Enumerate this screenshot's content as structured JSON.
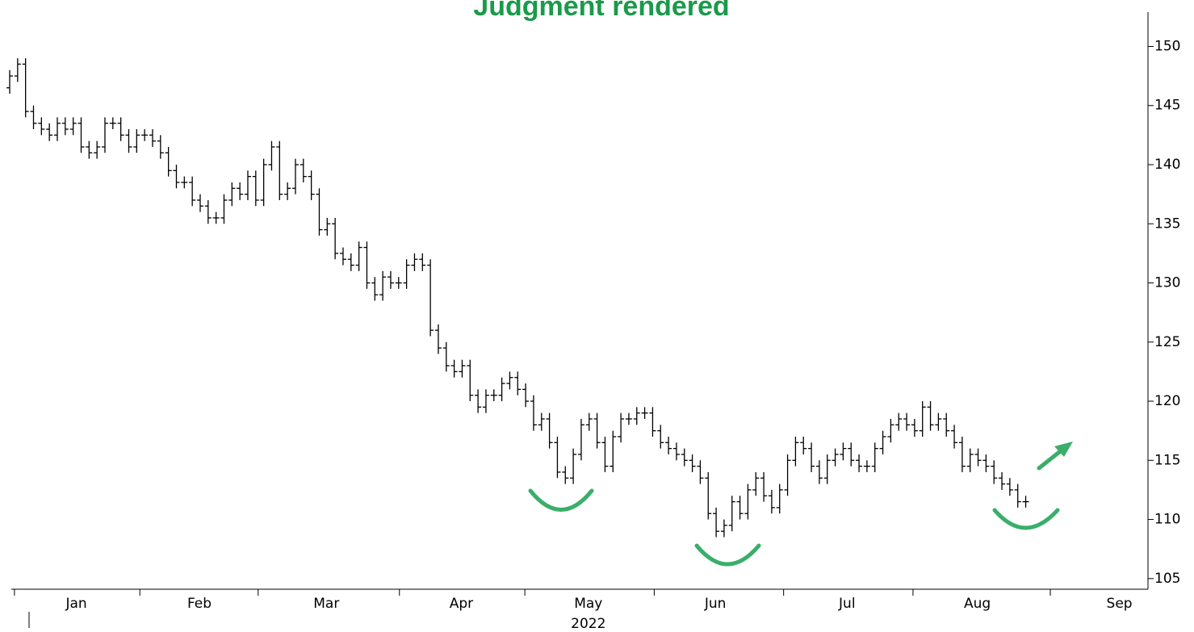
{
  "chart_data": {
    "type": "ohlc",
    "title": "Judgment rendered",
    "x_sublabel": "2022",
    "x": [
      0,
      1,
      2,
      3,
      4,
      5,
      6,
      7,
      8,
      9,
      10,
      11,
      12,
      13,
      14,
      15,
      16,
      17,
      18,
      19,
      20,
      21,
      22,
      23,
      24,
      25,
      26,
      27,
      28,
      29,
      30,
      31,
      32,
      33,
      34,
      35,
      36,
      37,
      38,
      39,
      40,
      41,
      42,
      43,
      44,
      45,
      46,
      47,
      48,
      49,
      50,
      51,
      52,
      53,
      54,
      55,
      56,
      57,
      58,
      59,
      60,
      61,
      62,
      63,
      64,
      65,
      66,
      67,
      68,
      69,
      70,
      71,
      72,
      73,
      74,
      75,
      76,
      77,
      78,
      79,
      80,
      81,
      82,
      83,
      84,
      85,
      86,
      87,
      88,
      89,
      90,
      91,
      92,
      93,
      94,
      95,
      96,
      97,
      98,
      99,
      100,
      101,
      102,
      103,
      104,
      105,
      106,
      107,
      108,
      109,
      110,
      111,
      112,
      113,
      114,
      115,
      116,
      117,
      118,
      119,
      120,
      121,
      122,
      123,
      124,
      125,
      126,
      127,
      128
    ],
    "open": [
      146.5,
      147.5,
      148.5,
      144.5,
      143.5,
      143,
      142.5,
      143.5,
      143,
      143.5,
      141.5,
      141,
      141.5,
      143.5,
      143.5,
      142.5,
      141.5,
      142.5,
      142.5,
      142,
      141,
      139.5,
      138.5,
      138.5,
      137,
      136.5,
      135.5,
      135.5,
      137,
      138,
      137.5,
      139,
      137,
      140,
      141.5,
      137.5,
      138,
      140,
      139,
      137.5,
      134.5,
      135,
      132.5,
      132,
      131.5,
      133,
      130,
      129,
      130.5,
      130,
      130,
      131.5,
      132,
      131.5,
      126,
      124.5,
      123,
      122.5,
      123,
      120.5,
      119.5,
      120.5,
      120.5,
      121.5,
      122,
      121,
      120,
      118,
      118.5,
      116.5,
      114,
      113.5,
      115.5,
      118,
      118.5,
      116.5,
      114.5,
      117,
      118.5,
      118.5,
      119,
      119,
      117.5,
      116.5,
      116,
      115.5,
      115,
      114.5,
      113.5,
      110.5,
      109,
      109.5,
      111.5,
      110.5,
      112.5,
      113.5,
      112,
      111,
      112.5,
      115,
      116.5,
      116,
      114.5,
      113.5,
      115,
      115.5,
      116,
      115,
      114.5,
      114.5,
      116,
      117,
      118,
      118.5,
      118,
      117.5,
      119.5,
      118,
      118.5,
      117.5,
      116.5,
      114.5,
      115.5,
      115,
      114.5,
      113.5,
      113,
      112.5,
      111.5
    ],
    "high": [
      148,
      149,
      149,
      145,
      144,
      143.5,
      144,
      144,
      144,
      144,
      142,
      142,
      144,
      144,
      144,
      143,
      143,
      143,
      143,
      142.5,
      141.5,
      140,
      139,
      139,
      137.5,
      137,
      136,
      137.5,
      138.5,
      138.5,
      139.5,
      139.5,
      140.5,
      142,
      142,
      138.5,
      140.5,
      140.5,
      139.5,
      138,
      135.5,
      135.5,
      133,
      132.5,
      133.5,
      133.5,
      130.5,
      131,
      131,
      130.5,
      132,
      132.5,
      132.5,
      132,
      126.5,
      125,
      123.5,
      123.5,
      123.5,
      121,
      121,
      121,
      122,
      122.5,
      122.5,
      121.5,
      120.5,
      119,
      119,
      117,
      114.5,
      116,
      118.5,
      119,
      119,
      117,
      117.5,
      119,
      119,
      119.5,
      119.5,
      119.5,
      118,
      117,
      116.5,
      116,
      115.5,
      115,
      114,
      111,
      110,
      112,
      112,
      113,
      114,
      114,
      112.5,
      113,
      115.5,
      117,
      117,
      116.5,
      115,
      115.5,
      116,
      116.5,
      116.5,
      115.5,
      115,
      116.5,
      117.5,
      118.5,
      119,
      119,
      118.5,
      120,
      120,
      119,
      119,
      118,
      117,
      116,
      116,
      115.5,
      115,
      114,
      113.5,
      113,
      112
    ],
    "low": [
      146,
      147,
      144,
      143,
      142.5,
      142,
      142,
      142.5,
      142.5,
      141,
      140.5,
      140.5,
      141,
      143,
      142,
      141,
      141,
      142,
      141.5,
      140.5,
      139,
      138,
      138,
      136.5,
      136,
      135,
      135,
      135,
      136.5,
      137,
      137,
      136.5,
      136.5,
      139.5,
      137,
      137,
      137.5,
      138.5,
      137,
      134,
      134,
      132,
      131.5,
      131,
      131,
      129.5,
      128.5,
      128.5,
      129.5,
      129.5,
      129.5,
      131,
      131,
      125.5,
      124,
      122.5,
      122,
      122,
      120,
      119,
      119,
      120,
      120,
      121,
      120.5,
      119.5,
      117.5,
      117.5,
      116,
      113.5,
      113,
      113,
      115,
      117.5,
      116,
      114,
      114,
      116.5,
      118,
      118,
      118.5,
      117,
      116,
      115.5,
      115,
      114.5,
      114,
      113,
      110,
      108.5,
      108.5,
      109,
      110,
      110,
      112,
      111.5,
      110.5,
      110.5,
      112,
      114.5,
      115.5,
      114,
      113,
      113,
      114.5,
      115,
      114.5,
      114,
      114,
      114,
      115.5,
      116.5,
      117.5,
      117.5,
      117,
      117,
      117.5,
      117.5,
      117,
      116,
      114,
      114,
      114.5,
      114,
      113,
      112.5,
      112,
      111,
      111
    ],
    "close": [
      147.5,
      148.5,
      144.5,
      143.5,
      143,
      142.5,
      143.5,
      143,
      143.5,
      141.5,
      141,
      141.5,
      143.5,
      143.5,
      142.5,
      141.5,
      142.5,
      142.5,
      142,
      141,
      139.5,
      138.5,
      138.5,
      137,
      136.5,
      135.5,
      135.5,
      137,
      138,
      137.5,
      139,
      137,
      140,
      141.5,
      137.5,
      138,
      140,
      139,
      137.5,
      134.5,
      135,
      132.5,
      132,
      131.5,
      133,
      130,
      129,
      130.5,
      130,
      130,
      131.5,
      132,
      131.5,
      126,
      124.5,
      123,
      122.5,
      123,
      120.5,
      119.5,
      120.5,
      120.5,
      121.5,
      122,
      121,
      120,
      118,
      118.5,
      116.5,
      114,
      113.5,
      115.5,
      118,
      118.5,
      116.5,
      114.5,
      117,
      118.5,
      118.5,
      119,
      119,
      117.5,
      116.5,
      116,
      115.5,
      115,
      114.5,
      113.5,
      110.5,
      109,
      109.5,
      111.5,
      110.5,
      112.5,
      113.5,
      112,
      111,
      112.5,
      115,
      116.5,
      116,
      114.5,
      113.5,
      115,
      115.5,
      116,
      115,
      114.5,
      114.5,
      116,
      117,
      118,
      118.5,
      118,
      117.5,
      119.5,
      118,
      118.5,
      117.5,
      116.5,
      114.5,
      115.5,
      115,
      114.5,
      113.5,
      113,
      112.5,
      111.5,
      111.5
    ],
    "xlim": [
      0,
      143.2
    ],
    "xticks": [
      {
        "value": 8.4,
        "label": "Jan"
      },
      {
        "value": 23.9,
        "label": "Feb"
      },
      {
        "value": 39.9,
        "label": "Mar"
      },
      {
        "value": 56.9,
        "label": "Apr"
      },
      {
        "value": 72.9,
        "label": "May"
      },
      {
        "value": 88.9,
        "label": "Jun"
      },
      {
        "value": 105.5,
        "label": "Jul"
      },
      {
        "value": 121.9,
        "label": "Aug"
      },
      {
        "value": 139.8,
        "label": "Sep"
      }
    ],
    "xminorticks": [
      0.6,
      16.4,
      31.3,
      49.1,
      64.9,
      81.2,
      97.5,
      113.8,
      131.1
    ],
    "ylim": [
      104.1,
      152.9
    ],
    "yticks": [
      105,
      110,
      115,
      120,
      125,
      130,
      135,
      140,
      145,
      150
    ],
    "color": "#000000",
    "y_axis_side": "right"
  }
}
